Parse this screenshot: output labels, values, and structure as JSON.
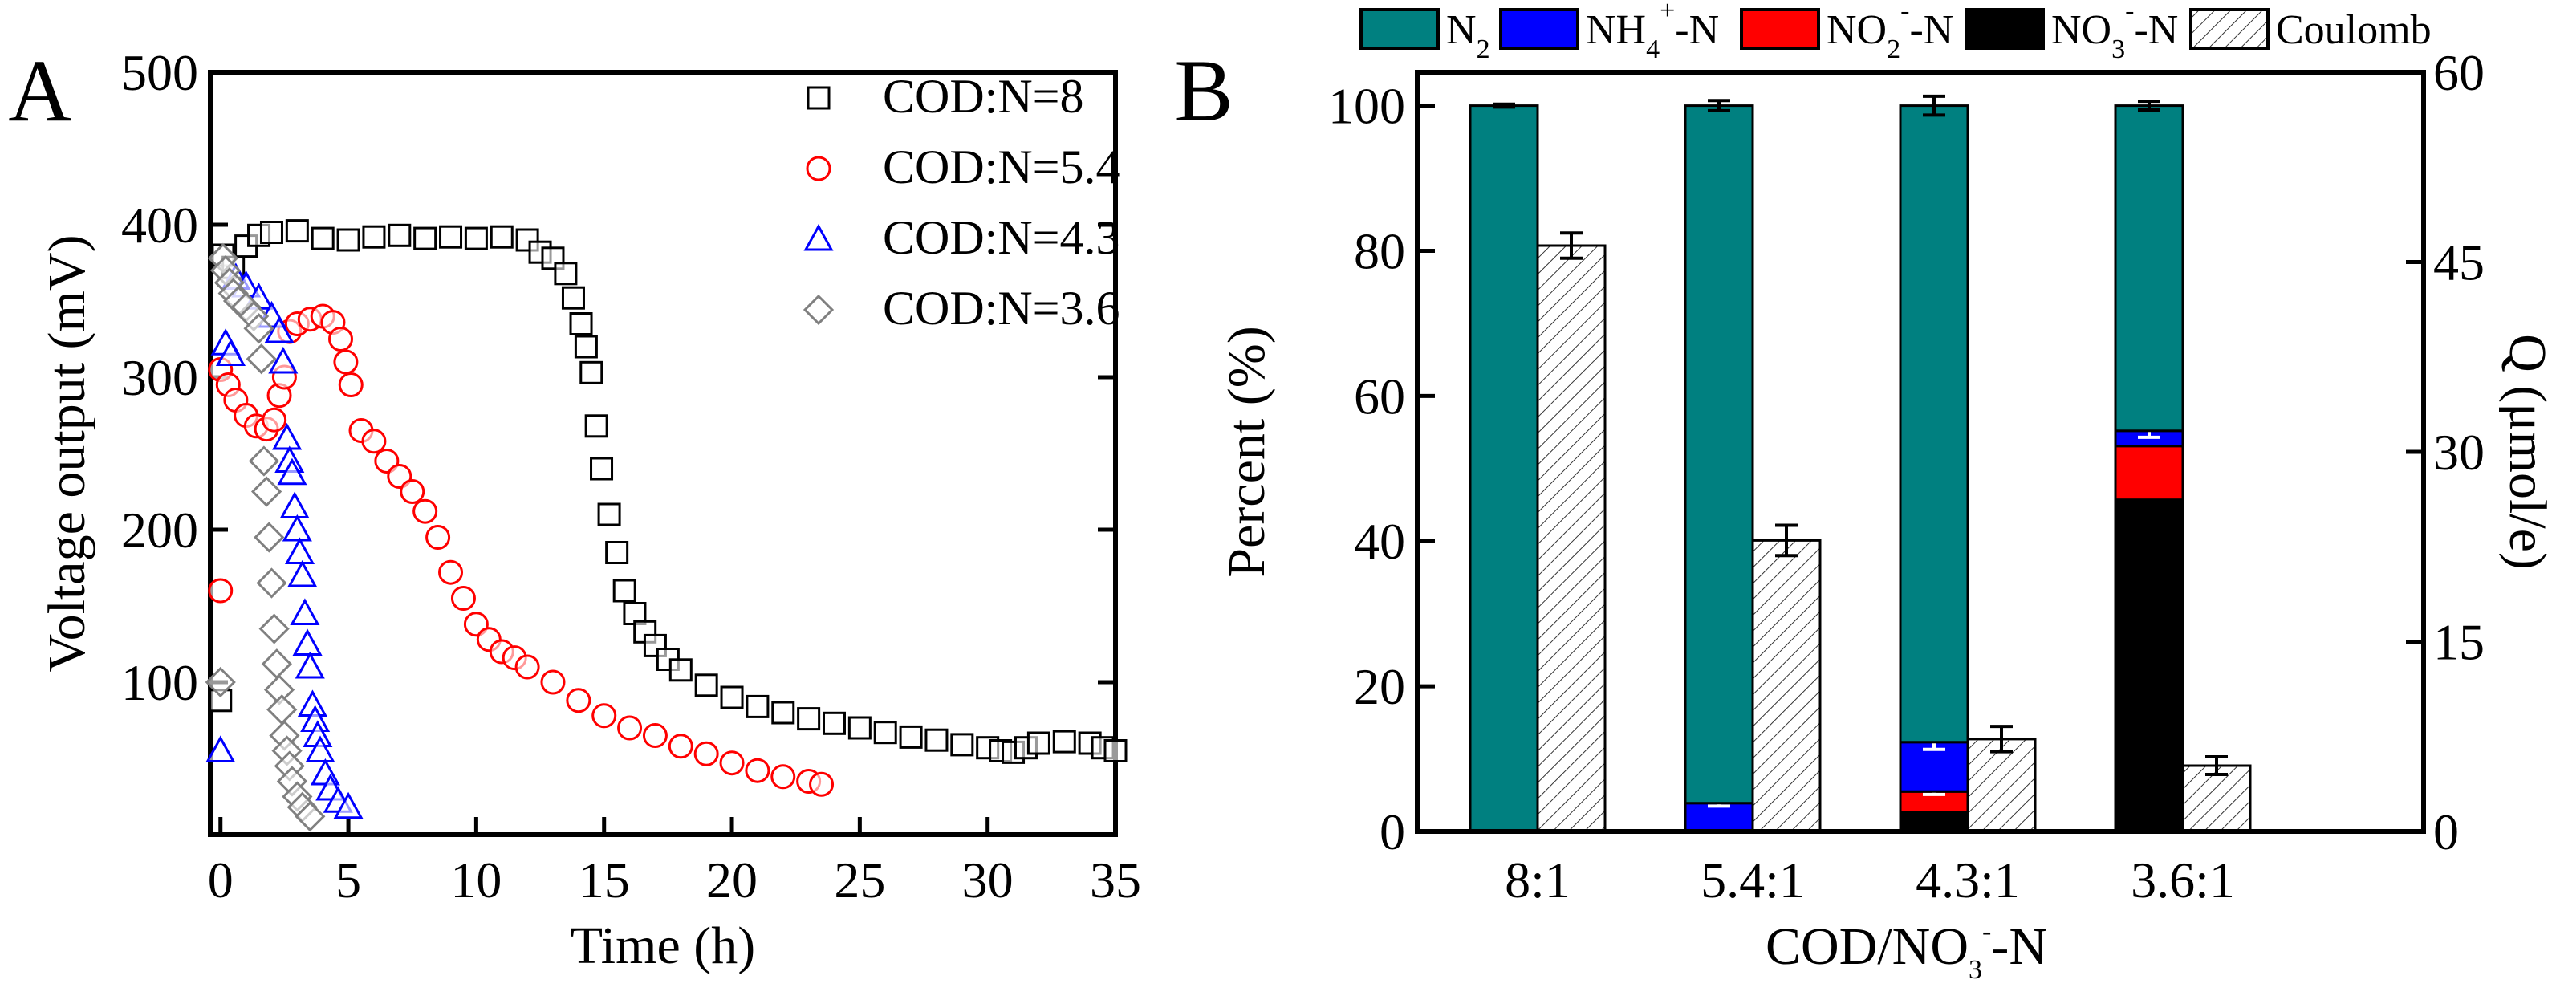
{
  "chart_data": [
    {
      "type": "scatter",
      "panel_label": "A",
      "xlabel": "Time (h)",
      "ylabel": "Voltage output (mV)",
      "xlim": [
        -0.4,
        35
      ],
      "ylim": [
        0,
        500
      ],
      "xticks": [
        "0",
        "5",
        "10",
        "15",
        "20",
        "25",
        "30",
        "35"
      ],
      "xtick_values": [
        0,
        5,
        10,
        15,
        20,
        25,
        30,
        35
      ],
      "yticks": [
        "100",
        "200",
        "300",
        "400",
        "500"
      ],
      "ytick_values": [
        100,
        200,
        300,
        400,
        500
      ],
      "legend_position": "top-right",
      "series": [
        {
          "name": "COD:N=8",
          "marker": "square",
          "color": "#000000",
          "x": [
            0,
            0.1,
            0.5,
            1,
            1.5,
            2,
            3,
            4,
            5,
            6,
            7,
            8,
            9,
            10,
            11,
            12,
            12.5,
            13,
            13.5,
            13.8,
            14.1,
            14.3,
            14.5,
            14.7,
            14.9,
            15.2,
            15.5,
            15.8,
            16.2,
            16.6,
            17,
            17.5,
            18,
            19,
            20,
            21,
            22,
            23,
            24,
            25,
            26,
            27,
            28,
            29,
            30,
            30.5,
            31,
            31.5,
            32,
            33,
            34,
            34.5,
            35
          ],
          "y": [
            88,
            380,
            372,
            386,
            393,
            395,
            396,
            391,
            390,
            392,
            393,
            391,
            392,
            391,
            392,
            390,
            382,
            378,
            368,
            352,
            335,
            320,
            303,
            268,
            240,
            210,
            185,
            160,
            145,
            133,
            124,
            115,
            108,
            98,
            90,
            84,
            80,
            76,
            73,
            70,
            67,
            64,
            62,
            59,
            57,
            55,
            54,
            57,
            60,
            61,
            60,
            57,
            55
          ]
        },
        {
          "name": "COD:N=5.4",
          "marker": "circle",
          "color": "#ff0000",
          "x": [
            0,
            0,
            0.3,
            0.6,
            1,
            1.4,
            1.8,
            2.1,
            2.3,
            2.5,
            2.7,
            3,
            3.5,
            4,
            4.4,
            4.7,
            4.9,
            5.1,
            5.5,
            6,
            6.5,
            7,
            7.5,
            8,
            8.5,
            9,
            9.5,
            10,
            10.5,
            11,
            11.5,
            12,
            13,
            14,
            15,
            16,
            17,
            18,
            19,
            20,
            21,
            22,
            23,
            23.5
          ],
          "y": [
            160,
            305,
            295,
            285,
            275,
            268,
            266,
            272,
            288,
            300,
            330,
            335,
            338,
            340,
            336,
            325,
            310,
            295,
            265,
            258,
            245,
            235,
            225,
            212,
            195,
            172,
            155,
            138,
            128,
            120,
            116,
            110,
            100,
            88,
            78,
            70,
            65,
            58,
            53,
            47,
            42,
            38,
            35,
            33
          ]
        },
        {
          "name": "COD:N=4.3",
          "marker": "triangle",
          "color": "#0000ff",
          "x": [
            0,
            0.2,
            0.4,
            0.6,
            1,
            1.5,
            2,
            2.3,
            2.45,
            2.6,
            2.7,
            2.8,
            2.9,
            3,
            3.1,
            3.2,
            3.3,
            3.4,
            3.5,
            3.6,
            3.7,
            3.8,
            3.9,
            4.1,
            4.3,
            4.6,
            5
          ],
          "y": [
            55,
            322,
            315,
            365,
            360,
            352,
            340,
            330,
            310,
            260,
            245,
            237,
            215,
            200,
            185,
            170,
            145,
            125,
            110,
            85,
            75,
            65,
            55,
            40,
            30,
            22,
            18
          ]
        },
        {
          "name": "COD:N=3.6",
          "marker": "diamond",
          "color": "#808080",
          "x": [
            0,
            0.1,
            0.2,
            0.35,
            0.5,
            0.7,
            1,
            1.3,
            1.5,
            1.6,
            1.7,
            1.8,
            1.9,
            2,
            2.1,
            2.2,
            2.3,
            2.4,
            2.5,
            2.6,
            2.7,
            2.8,
            3,
            3.2,
            3.5
          ],
          "y": [
            100,
            378,
            370,
            362,
            355,
            350,
            346,
            340,
            332,
            312,
            245,
            225,
            195,
            165,
            135,
            112,
            95,
            82,
            65,
            55,
            45,
            35,
            25,
            18,
            12
          ]
        }
      ]
    },
    {
      "type": "bar",
      "panel_label": "B",
      "stacked": true,
      "xlabel_parts": {
        "base": "COD/NO",
        "sub": "3",
        "sup": "-",
        "tail": "-N"
      },
      "ylabel": "Percent (%)",
      "ylabel_right": "Q (μmol/e)",
      "ylim": [
        0,
        104.6
      ],
      "ylim_right": [
        0,
        60
      ],
      "yticks": [
        "0",
        "20",
        "40",
        "60",
        "80",
        "100"
      ],
      "ytick_values": [
        0,
        20,
        40,
        60,
        80,
        100
      ],
      "yticks_right": [
        "0",
        "15",
        "30",
        "45",
        "60"
      ],
      "ytick_values_right": [
        0,
        15,
        30,
        45,
        60
      ],
      "categories": [
        "8:1",
        "5.4:1",
        "4.3:1",
        "3.6:1"
      ],
      "legend_position": "top",
      "series": [
        {
          "name": "NO3--N",
          "label": {
            "base": "NO",
            "sub": "3",
            "sup": "-",
            "tail": "-N"
          },
          "color": "#000000",
          "values": [
            0,
            0,
            2.6,
            45.7
          ],
          "errors": [
            0,
            0,
            0,
            2.2
          ],
          "error_color": "#000000"
        },
        {
          "name": "NO2--N",
          "label": {
            "base": "NO",
            "sub": "2",
            "sup": "-",
            "tail": "-N"
          },
          "color": "#ff0000",
          "values": [
            0,
            0,
            2.9,
            7.4
          ],
          "errors": [
            0,
            0,
            0.4,
            0
          ],
          "error_color": "#ffffff"
        },
        {
          "name": "NH4+-N",
          "label": {
            "base": "NH",
            "sub": "4",
            "sup": "+",
            "tail": "-N"
          },
          "color": "#0000ff",
          "values": [
            0,
            3.9,
            6.8,
            2.1
          ],
          "errors": [
            0,
            0.4,
            1.0,
            0.9
          ],
          "error_color": "#ffffff"
        },
        {
          "name": "N2",
          "label": {
            "base": "N",
            "sub": "2",
            "sup": "",
            "tail": ""
          },
          "color": "#008080",
          "values": [
            100,
            96.1,
            87.7,
            44.8
          ],
          "errors": [
            0.2,
            0.7,
            1.3,
            0.6
          ],
          "error_color": "#000000"
        }
      ],
      "coulomb": {
        "name": "Coulomb",
        "label": {
          "base": "Coulomb",
          "sub": "",
          "sup": "",
          "tail": ""
        },
        "axis": "right",
        "values": [
          46.3,
          23.0,
          7.3,
          5.2
        ],
        "errors": [
          1.0,
          1.2,
          1.0,
          0.7
        ]
      }
    }
  ]
}
